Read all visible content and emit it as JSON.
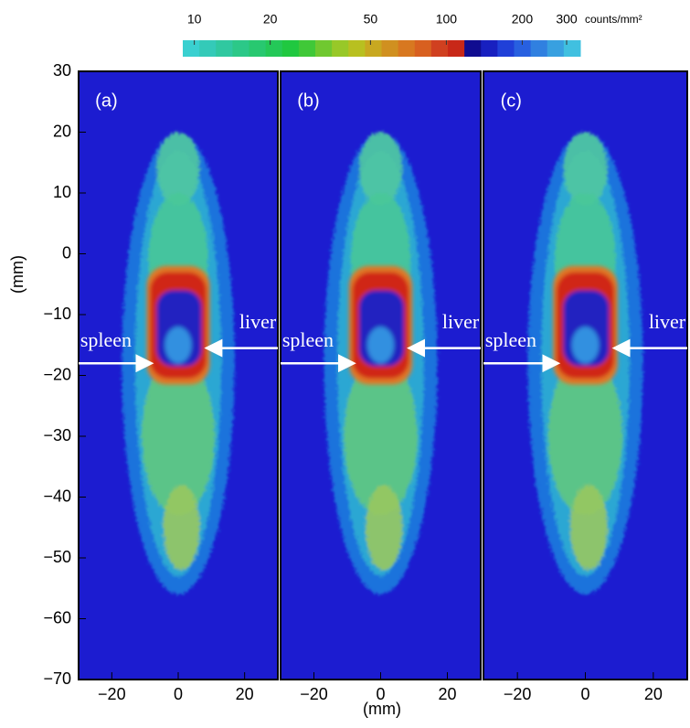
{
  "chart_data": [
    {
      "type": "heatmap",
      "panel_label": "(a)",
      "xlim": [
        -30,
        30
      ],
      "ylim": [
        -70,
        30
      ],
      "xticks": [
        {
          "value": -20,
          "label": "−20"
        },
        0,
        20
      ],
      "yticks": [
        30,
        20,
        10,
        0,
        {
          "value": -10,
          "label": "−10"
        },
        {
          "value": -20,
          "label": "−20"
        },
        {
          "value": -30,
          "label": "−30"
        },
        {
          "value": -40,
          "label": "−40"
        },
        {
          "value": -50,
          "label": "−50"
        },
        {
          "value": -60,
          "label": "−60"
        },
        {
          "value": -70,
          "label": "−70"
        }
      ],
      "annotations": [
        "spleen",
        "liver"
      ]
    },
    {
      "type": "heatmap",
      "panel_label": "(b)",
      "xlim": [
        -30,
        30
      ],
      "ylim": [
        -70,
        30
      ],
      "xticks": [
        {
          "value": -20,
          "label": "−20"
        },
        0,
        20
      ],
      "annotations": [
        "spleen",
        "liver"
      ]
    },
    {
      "type": "heatmap",
      "panel_label": "(c)",
      "xlim": [
        -30,
        30
      ],
      "ylim": [
        -70,
        30
      ],
      "xticks": [
        {
          "value": -20,
          "label": "−20"
        },
        0,
        20
      ],
      "annotations": [
        "spleen",
        "liver"
      ]
    }
  ],
  "y_label": "(mm)",
  "x_label": "(mm)",
  "colorbar": {
    "scale": "log",
    "lim": [
      9,
      340
    ],
    "ticks": [
      10,
      20,
      50,
      100,
      200,
      300
    ],
    "label": "counts/mm²",
    "colors": [
      "#3ad0d0",
      "#34cab8",
      "#30c8a0",
      "#2cc888",
      "#28c870",
      "#24c858",
      "#20c840",
      "#40c838",
      "#70c830",
      "#98c828",
      "#b8c020",
      "#c8a820",
      "#d09020",
      "#d87820",
      "#d86020",
      "#d04020",
      "#c82818",
      "#100c90",
      "#1820c0",
      "#2040d8",
      "#2860e0",
      "#3080e0",
      "#38a0e0",
      "#40c0e0"
    ]
  }
}
